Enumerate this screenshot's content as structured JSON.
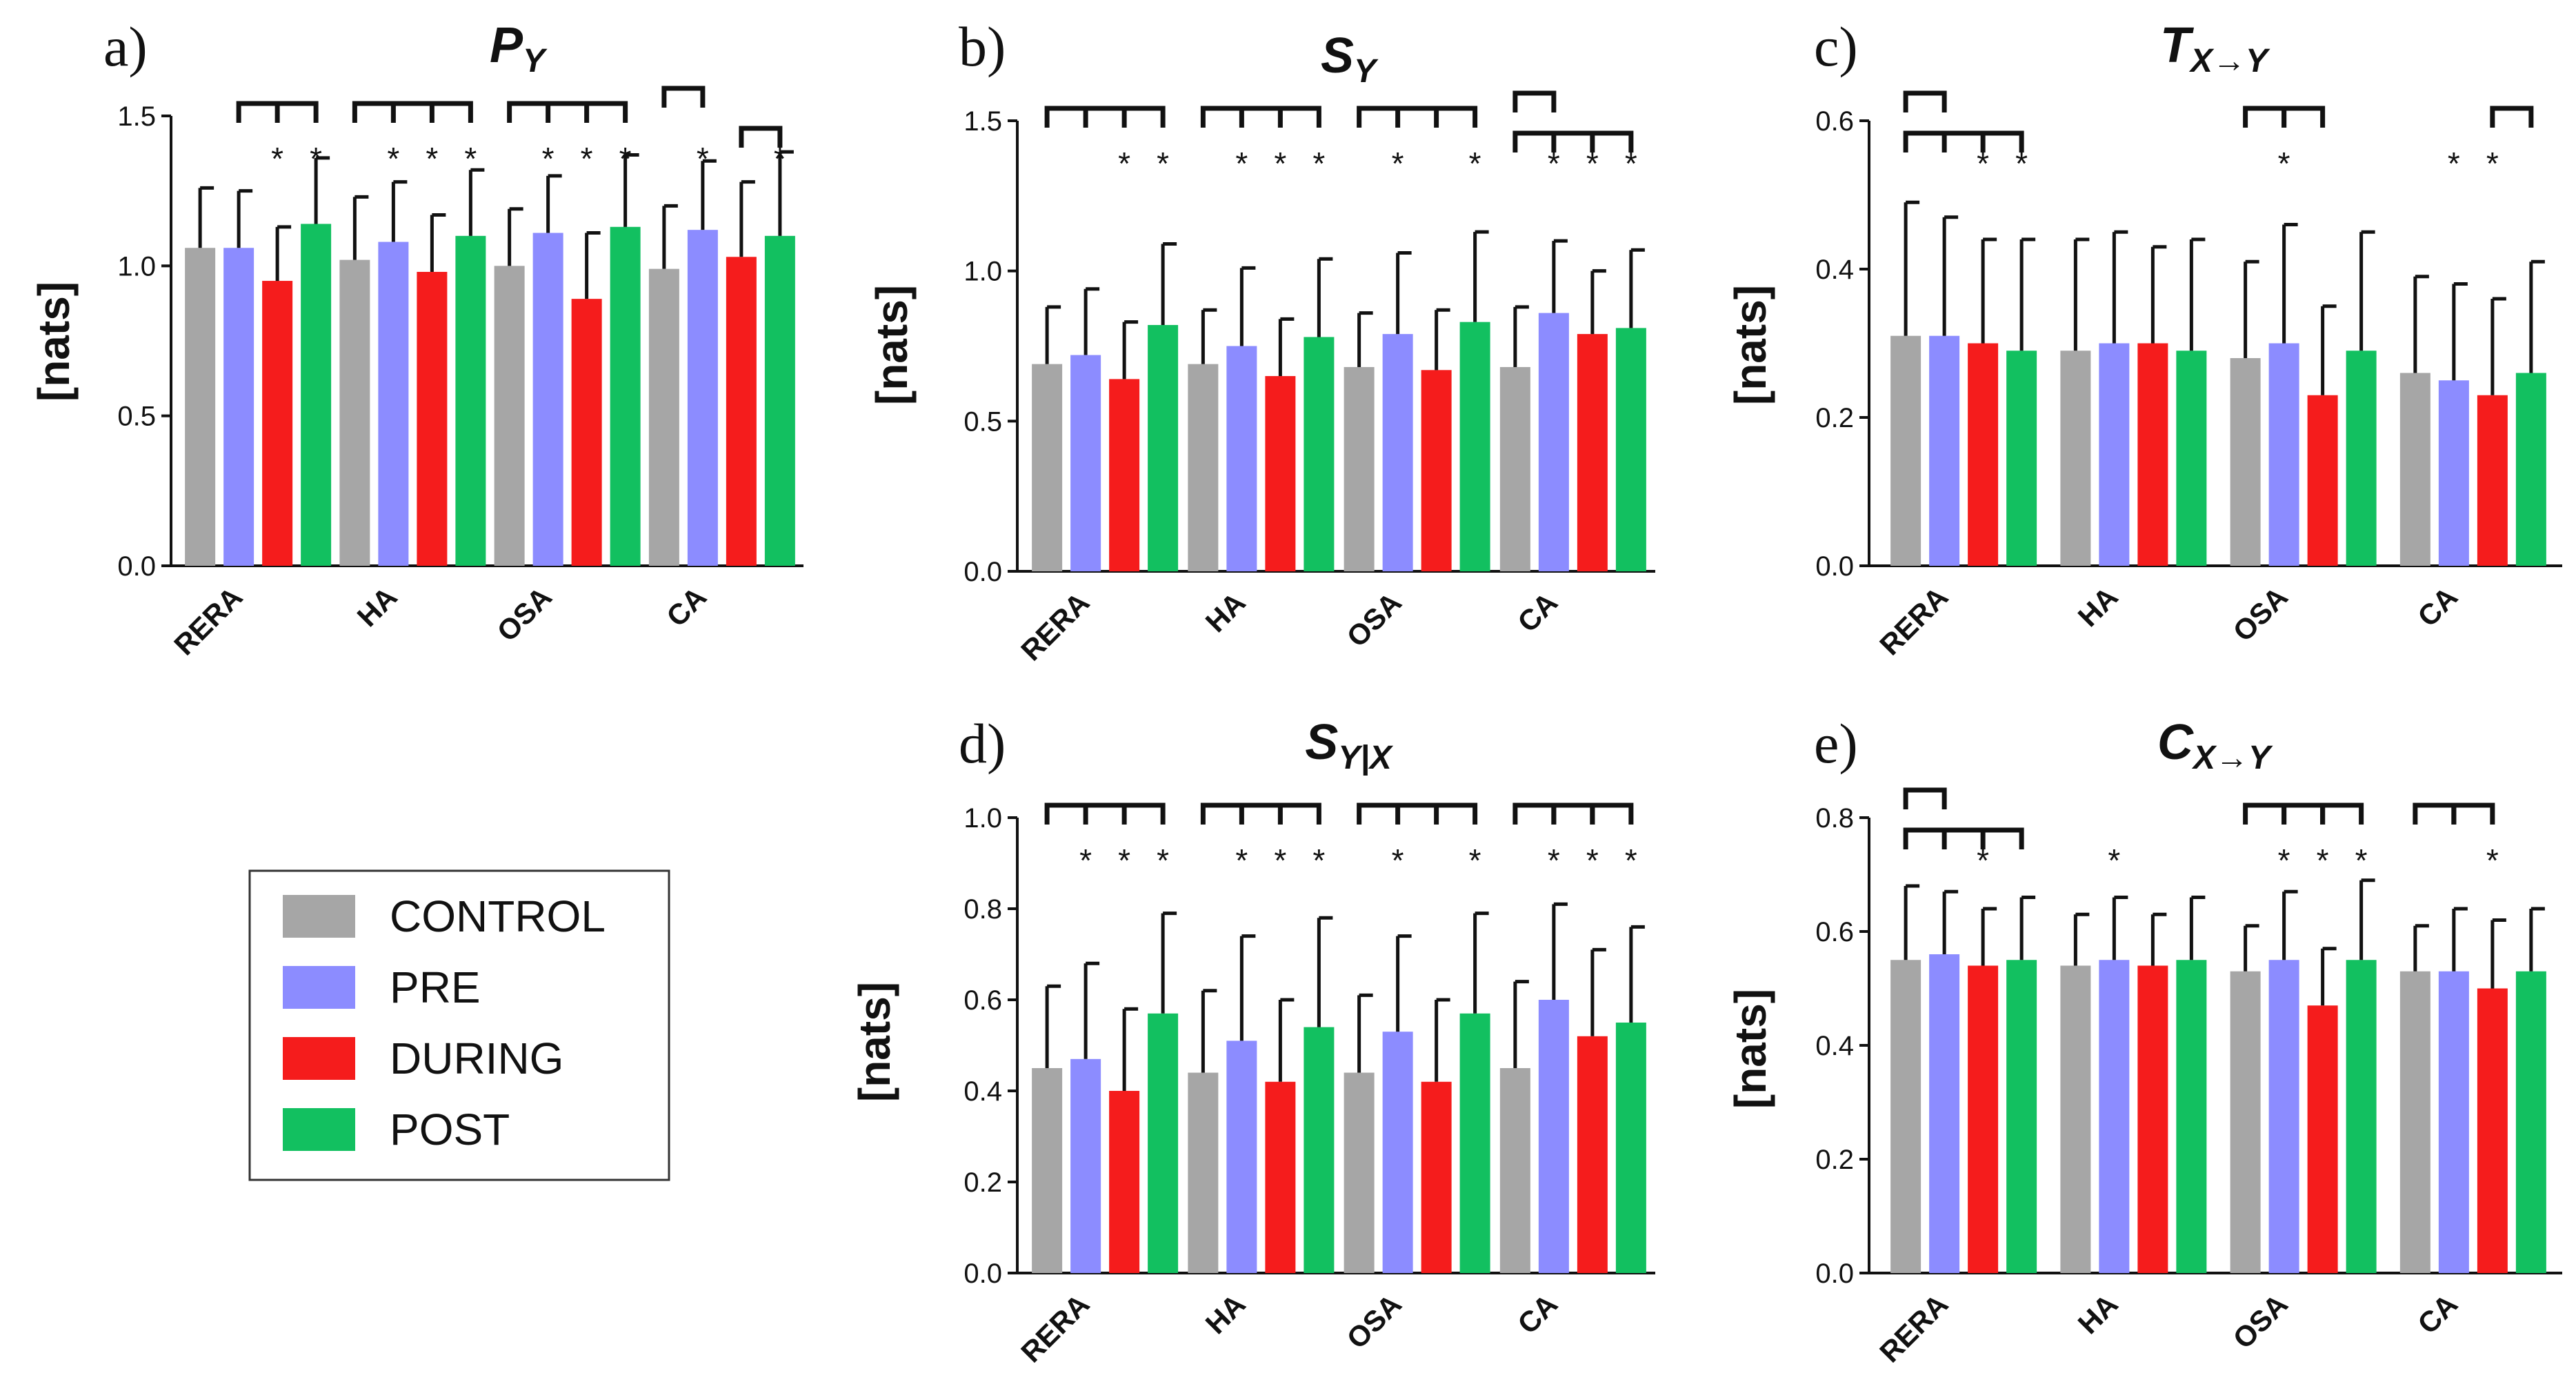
{
  "colors": {
    "CONTROL": "#a6a6a6",
    "PRE": "#8c8cff",
    "DURING": "#f51c1c",
    "POST": "#12c060"
  },
  "legend": {
    "items": [
      "CONTROL",
      "PRE",
      "DURING",
      "POST"
    ]
  },
  "chart_data": [
    {
      "type": "bar",
      "id": "a",
      "panel_label": "a)",
      "title": {
        "main": "P",
        "sub": "Y"
      },
      "ylabel": "[nats]",
      "ylim": [
        0,
        1.5
      ],
      "yticks": [
        0.0,
        0.5,
        1.0,
        1.5
      ],
      "tick_labels": [
        "0.0",
        "0.5",
        "1.0",
        "1.5"
      ],
      "categories": [
        "RERA",
        "HA",
        "OSA",
        "CA"
      ],
      "series": [
        {
          "name": "CONTROL",
          "values": [
            1.06,
            1.02,
            1.0,
            0.99
          ],
          "errors": [
            0.2,
            0.21,
            0.19,
            0.21
          ]
        },
        {
          "name": "PRE",
          "values": [
            1.06,
            1.08,
            1.11,
            1.12
          ],
          "errors": [
            0.19,
            0.2,
            0.19,
            0.23
          ]
        },
        {
          "name": "DURING",
          "values": [
            0.95,
            0.98,
            0.89,
            1.03
          ],
          "errors": [
            0.18,
            0.19,
            0.22,
            0.25
          ]
        },
        {
          "name": "POST",
          "values": [
            1.14,
            1.1,
            1.13,
            1.1
          ],
          "errors": [
            0.22,
            0.22,
            0.24,
            0.28
          ]
        }
      ],
      "significance": [
        {
          "cat": 0,
          "stars": [
            2,
            3
          ],
          "brackets": [
            [
              [
                1,
                2
              ],
              [
                1,
                3
              ]
            ]
          ]
        },
        {
          "cat": 1,
          "stars": [
            1,
            2,
            3
          ],
          "brackets": [
            [
              [
                0,
                1
              ],
              [
                0,
                2
              ],
              [
                0,
                3
              ]
            ]
          ]
        },
        {
          "cat": 2,
          "stars": [
            1,
            2,
            3
          ],
          "brackets": [
            [
              [
                0,
                1
              ],
              [
                0,
                2
              ],
              [
                0,
                3
              ]
            ]
          ]
        },
        {
          "cat": 3,
          "stars": [
            1,
            3
          ],
          "brackets": [
            [
              [
                0,
                1
              ]
            ],
            [
              [
                2,
                3
              ]
            ]
          ]
        }
      ]
    },
    {
      "type": "bar",
      "id": "b",
      "panel_label": "b)",
      "title": {
        "main": "S",
        "sub": "Y"
      },
      "ylabel": "[nats]",
      "ylim": [
        0,
        1.5
      ],
      "yticks": [
        0.0,
        0.5,
        1.0,
        1.5
      ],
      "tick_labels": [
        "0.0",
        "0.5",
        "1.0",
        "1.5"
      ],
      "categories": [
        "RERA",
        "HA",
        "OSA",
        "CA"
      ],
      "series": [
        {
          "name": "CONTROL",
          "values": [
            0.69,
            0.69,
            0.68,
            0.68
          ],
          "errors": [
            0.19,
            0.18,
            0.18,
            0.2
          ]
        },
        {
          "name": "PRE",
          "values": [
            0.72,
            0.75,
            0.79,
            0.86
          ],
          "errors": [
            0.22,
            0.26,
            0.27,
            0.24
          ]
        },
        {
          "name": "DURING",
          "values": [
            0.64,
            0.65,
            0.67,
            0.79
          ],
          "errors": [
            0.19,
            0.19,
            0.2,
            0.21
          ]
        },
        {
          "name": "POST",
          "values": [
            0.82,
            0.78,
            0.83,
            0.81
          ],
          "errors": [
            0.27,
            0.26,
            0.3,
            0.26
          ]
        }
      ],
      "significance": [
        {
          "cat": 0,
          "stars": [
            2,
            3
          ],
          "brackets": [
            [
              [
                0,
                1
              ],
              [
                0,
                2
              ],
              [
                0,
                3
              ]
            ]
          ]
        },
        {
          "cat": 1,
          "stars": [
            1,
            2,
            3
          ],
          "brackets": [
            [
              [
                0,
                1
              ],
              [
                0,
                2
              ],
              [
                0,
                3
              ]
            ]
          ]
        },
        {
          "cat": 2,
          "stars": [
            1,
            3
          ],
          "brackets": [
            [
              [
                0,
                1
              ],
              [
                0,
                2
              ],
              [
                0,
                3
              ]
            ]
          ]
        },
        {
          "cat": 3,
          "stars": [
            1,
            2,
            3
          ],
          "brackets": [
            [
              [
                0,
                1
              ]
            ],
            [
              [
                0,
                1
              ],
              [
                0,
                2
              ],
              [
                0,
                3
              ]
            ]
          ]
        }
      ]
    },
    {
      "type": "bar",
      "id": "c",
      "panel_label": "c)",
      "title": {
        "main": "T",
        "sub": "X→Y"
      },
      "ylabel": "[nats]",
      "ylim": [
        0,
        0.6
      ],
      "yticks": [
        0.0,
        0.2,
        0.4,
        0.6
      ],
      "tick_labels": [
        "0.0",
        "0.2",
        "0.4",
        "0.6"
      ],
      "categories": [
        "RERA",
        "HA",
        "OSA",
        "CA"
      ],
      "series": [
        {
          "name": "CONTROL",
          "values": [
            0.31,
            0.29,
            0.28,
            0.26
          ],
          "errors": [
            0.18,
            0.15,
            0.13,
            0.13
          ]
        },
        {
          "name": "PRE",
          "values": [
            0.31,
            0.3,
            0.3,
            0.25
          ],
          "errors": [
            0.16,
            0.15,
            0.16,
            0.13
          ]
        },
        {
          "name": "DURING",
          "values": [
            0.3,
            0.3,
            0.23,
            0.23
          ],
          "errors": [
            0.14,
            0.13,
            0.12,
            0.13
          ]
        },
        {
          "name": "POST",
          "values": [
            0.29,
            0.29,
            0.29,
            0.26
          ],
          "errors": [
            0.15,
            0.15,
            0.16,
            0.15
          ]
        }
      ],
      "significance": [
        {
          "cat": 0,
          "stars": [
            2,
            3
          ],
          "brackets": [
            [
              [
                0,
                1
              ]
            ],
            [
              [
                0,
                1
              ],
              [
                0,
                2
              ],
              [
                0,
                3
              ]
            ]
          ]
        },
        {
          "cat": 1,
          "stars": [],
          "brackets": []
        },
        {
          "cat": 2,
          "stars": [
            1
          ],
          "brackets": [
            [
              [
                0,
                1
              ]
            ],
            [
              [
                1,
                2
              ]
            ]
          ],
          "one_row": true
        },
        {
          "cat": 3,
          "stars": [
            1,
            2
          ],
          "brackets": [
            [
              [
                2,
                3
              ]
            ]
          ]
        }
      ]
    },
    {
      "type": "bar",
      "id": "d",
      "panel_label": "d)",
      "title": {
        "main": "S",
        "sub": "Y|X"
      },
      "ylabel": "[nats]",
      "ylim": [
        0,
        1.0
      ],
      "yticks": [
        0.0,
        0.2,
        0.4,
        0.6,
        0.8,
        1.0
      ],
      "tick_labels": [
        "0.0",
        "0.2",
        "0.4",
        "0.6",
        "0.8",
        "1.0"
      ],
      "categories": [
        "RERA",
        "HA",
        "OSA",
        "CA"
      ],
      "series": [
        {
          "name": "CONTROL",
          "values": [
            0.45,
            0.44,
            0.44,
            0.45
          ],
          "errors": [
            0.18,
            0.18,
            0.17,
            0.19
          ]
        },
        {
          "name": "PRE",
          "values": [
            0.47,
            0.51,
            0.53,
            0.6
          ],
          "errors": [
            0.21,
            0.23,
            0.21,
            0.21
          ]
        },
        {
          "name": "DURING",
          "values": [
            0.4,
            0.42,
            0.42,
            0.52
          ],
          "errors": [
            0.18,
            0.18,
            0.18,
            0.19
          ]
        },
        {
          "name": "POST",
          "values": [
            0.57,
            0.54,
            0.57,
            0.55
          ],
          "errors": [
            0.22,
            0.24,
            0.22,
            0.21
          ]
        }
      ],
      "significance": [
        {
          "cat": 0,
          "stars": [
            1,
            2,
            3
          ],
          "brackets": [
            [
              [
                0,
                1
              ],
              [
                0,
                2
              ],
              [
                0,
                3
              ]
            ]
          ]
        },
        {
          "cat": 1,
          "stars": [
            1,
            2,
            3
          ],
          "brackets": [
            [
              [
                0,
                1
              ],
              [
                0,
                2
              ],
              [
                0,
                3
              ]
            ]
          ]
        },
        {
          "cat": 2,
          "stars": [
            1,
            3
          ],
          "brackets": [
            [
              [
                0,
                1
              ],
              [
                0,
                2
              ],
              [
                0,
                3
              ]
            ]
          ]
        },
        {
          "cat": 3,
          "stars": [
            1,
            2,
            3
          ],
          "brackets": [
            [
              [
                0,
                1
              ]
            ],
            [
              [
                1,
                2
              ]
            ],
            [
              [
                2,
                3
              ]
            ]
          ],
          "one_row": true
        }
      ]
    },
    {
      "type": "bar",
      "id": "e",
      "panel_label": "e)",
      "title": {
        "main": "C",
        "sub": "X→Y"
      },
      "ylabel": "[nats]",
      "ylim": [
        0,
        0.8
      ],
      "yticks": [
        0.0,
        0.2,
        0.4,
        0.6,
        0.8
      ],
      "tick_labels": [
        "0.0",
        "0.2",
        "0.4",
        "0.6",
        "0.8"
      ],
      "categories": [
        "RERA",
        "HA",
        "OSA",
        "CA"
      ],
      "series": [
        {
          "name": "CONTROL",
          "values": [
            0.55,
            0.54,
            0.53,
            0.53
          ],
          "errors": [
            0.13,
            0.09,
            0.08,
            0.08
          ]
        },
        {
          "name": "PRE",
          "values": [
            0.56,
            0.55,
            0.55,
            0.53
          ],
          "errors": [
            0.11,
            0.11,
            0.12,
            0.11
          ]
        },
        {
          "name": "DURING",
          "values": [
            0.54,
            0.54,
            0.47,
            0.5
          ],
          "errors": [
            0.1,
            0.09,
            0.1,
            0.12
          ]
        },
        {
          "name": "POST",
          "values": [
            0.55,
            0.55,
            0.55,
            0.53
          ],
          "errors": [
            0.11,
            0.11,
            0.14,
            0.11
          ]
        }
      ],
      "significance": [
        {
          "cat": 0,
          "stars": [
            2
          ],
          "brackets": [
            [
              [
                0,
                1
              ]
            ],
            [
              [
                0,
                1
              ],
              [
                0,
                2
              ],
              [
                0,
                3
              ]
            ]
          ]
        },
        {
          "cat": 1,
          "stars": [
            1
          ],
          "brackets": []
        },
        {
          "cat": 2,
          "stars": [
            1,
            2,
            3
          ],
          "brackets": [
            [
              [
                0,
                1
              ]
            ],
            [
              [
                1,
                2
              ]
            ],
            [
              [
                2,
                3
              ]
            ]
          ],
          "one_row": true
        },
        {
          "cat": 3,
          "stars": [
            2
          ],
          "brackets": [
            [
              [
                0,
                1
              ]
            ],
            [
              [
                1,
                2
              ]
            ]
          ],
          "one_row": true
        }
      ]
    }
  ]
}
